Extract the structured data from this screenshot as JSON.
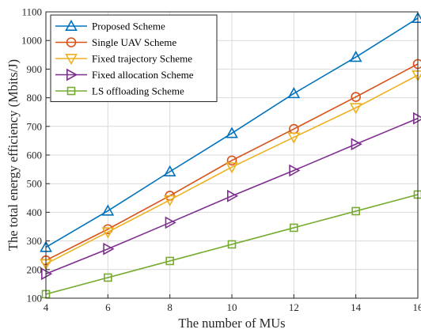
{
  "chart_data": {
    "type": "line",
    "xlabel": "The number of MUs",
    "ylabel": "The total energy efficiency (Mbits/J)",
    "x": [
      4,
      6,
      8,
      10,
      12,
      14,
      16
    ],
    "xlim": [
      4,
      16
    ],
    "ylim": [
      100,
      1100
    ],
    "xticks": [
      4,
      6,
      8,
      10,
      12,
      14,
      16
    ],
    "yticks": [
      100,
      200,
      300,
      400,
      500,
      600,
      700,
      800,
      900,
      1000,
      1100
    ],
    "grid": true,
    "legend_position": "top-left",
    "series": [
      {
        "name": "Proposed Scheme",
        "color": "#0072BD",
        "marker": "triangle-up",
        "values": [
          278,
          405,
          542,
          676,
          815,
          942,
          1078
        ]
      },
      {
        "name": "Single UAV Scheme",
        "color": "#D95319",
        "marker": "circle",
        "values": [
          232,
          341,
          458,
          581,
          691,
          803,
          918
        ]
      },
      {
        "name": "Fixed trajectory Scheme",
        "color": "#EDB120",
        "marker": "triangle-down",
        "values": [
          220,
          331,
          443,
          558,
          662,
          765,
          879
        ]
      },
      {
        "name": "Fixed allocation Scheme",
        "color": "#7E2F8E",
        "marker": "triangle-right",
        "values": [
          185,
          272,
          364,
          457,
          546,
          638,
          728
        ]
      },
      {
        "name": "LS offloading Scheme",
        "color": "#77AC30",
        "marker": "square",
        "values": [
          114,
          172,
          230,
          288,
          346,
          404,
          462
        ]
      }
    ]
  }
}
